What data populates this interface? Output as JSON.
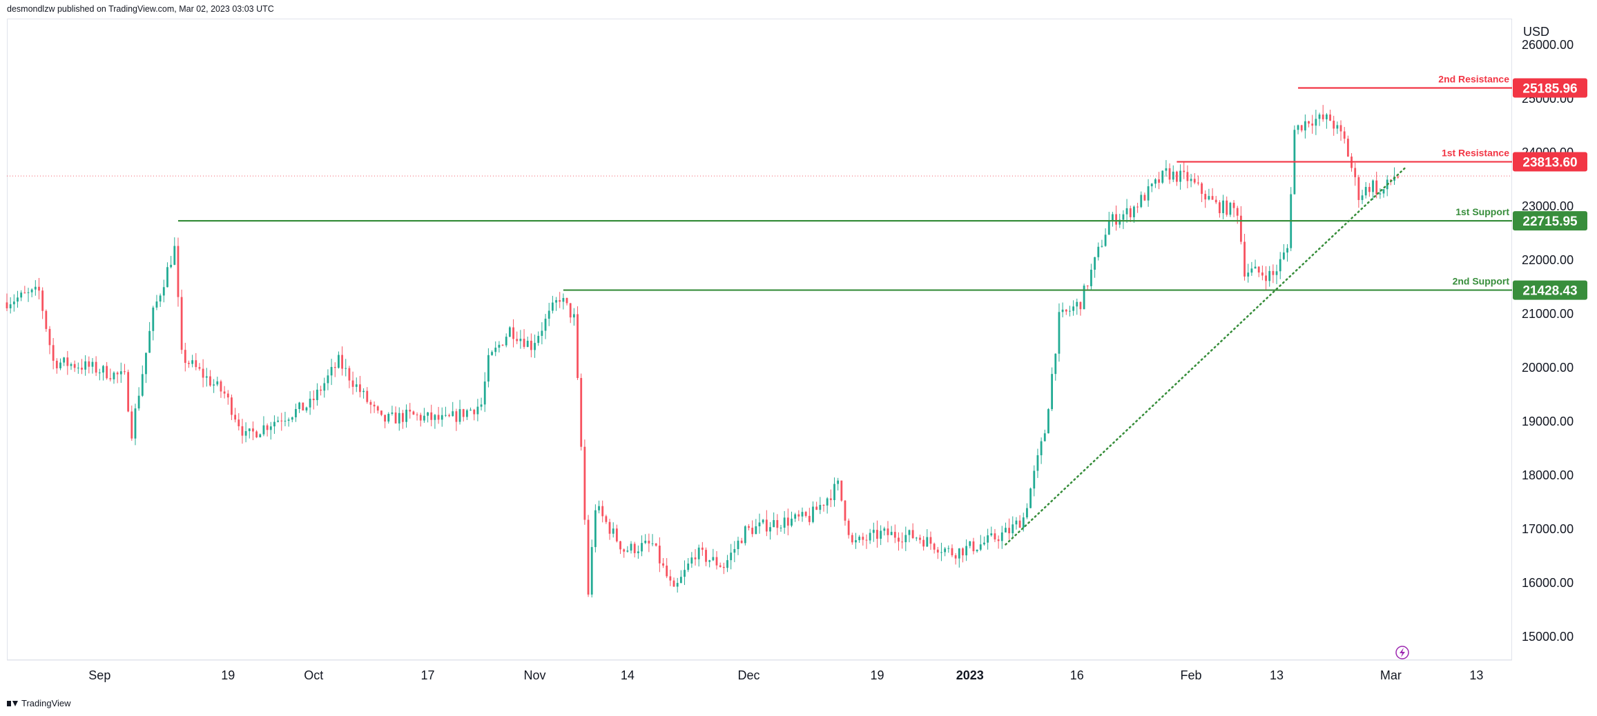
{
  "header": {
    "publisher": "desmondlzw published on TradingView.com, Mar 02, 2023 03:03 UTC"
  },
  "footer": {
    "brand": "TradingView"
  },
  "chart_data": {
    "type": "candlestick",
    "currency": "USD",
    "y_ticks": [
      15000,
      16000,
      17000,
      18000,
      19000,
      20000,
      21000,
      22000,
      23000,
      24000,
      25000,
      26000
    ],
    "y_tick_labels": [
      "15000.00",
      "16000.00",
      "17000.00",
      "18000.00",
      "19000.00",
      "20000.00",
      "21000.00",
      "22000.00",
      "23000.00",
      "24000.00",
      "25000.00",
      "26000.00"
    ],
    "x_ticks": [
      {
        "label": "Sep",
        "date": "2022-09-01"
      },
      {
        "label": "19",
        "date": "2022-09-19"
      },
      {
        "label": "Oct",
        "date": "2022-10-01"
      },
      {
        "label": "17",
        "date": "2022-10-17"
      },
      {
        "label": "Nov",
        "date": "2022-11-01"
      },
      {
        "label": "14",
        "date": "2022-11-14"
      },
      {
        "label": "Dec",
        "date": "2022-12-01"
      },
      {
        "label": "19",
        "date": "2022-12-19"
      },
      {
        "label": "2023",
        "date": "2023-01-01",
        "bold": true
      },
      {
        "label": "16",
        "date": "2023-01-16"
      },
      {
        "label": "Feb",
        "date": "2023-02-01"
      },
      {
        "label": "13",
        "date": "2023-02-13"
      },
      {
        "label": "Mar",
        "date": "2023-03-01"
      },
      {
        "label": "13",
        "date": "2023-03-13"
      }
    ],
    "price_path": [
      [
        "2022-08-19",
        21200
      ],
      [
        "2022-08-24",
        21400
      ],
      [
        "2022-08-26",
        20100
      ],
      [
        "2022-08-31",
        20000
      ],
      [
        "2022-09-05",
        19800
      ],
      [
        "2022-09-06",
        18800
      ],
      [
        "2022-09-09",
        21000
      ],
      [
        "2022-09-12",
        22200
      ],
      [
        "2022-09-13",
        20200
      ],
      [
        "2022-09-19",
        19500
      ],
      [
        "2022-09-22",
        18700
      ],
      [
        "2022-09-26",
        19000
      ],
      [
        "2022-10-01",
        19300
      ],
      [
        "2022-10-05",
        20100
      ],
      [
        "2022-10-11",
        19000
      ],
      [
        "2022-10-15",
        19100
      ],
      [
        "2022-10-20",
        19000
      ],
      [
        "2022-10-25",
        19300
      ],
      [
        "2022-10-26",
        20100
      ],
      [
        "2022-10-29",
        20700
      ],
      [
        "2022-11-01",
        20400
      ],
      [
        "2022-11-05",
        21300
      ],
      [
        "2022-11-07",
        20900
      ],
      [
        "2022-11-08",
        18500
      ],
      [
        "2022-11-09",
        15800
      ],
      [
        "2022-11-10",
        17400
      ],
      [
        "2022-11-14",
        16600
      ],
      [
        "2022-11-18",
        16700
      ],
      [
        "2022-11-21",
        15800
      ],
      [
        "2022-11-24",
        16550
      ],
      [
        "2022-11-28",
        16300
      ],
      [
        "2022-12-01",
        16950
      ],
      [
        "2022-12-05",
        17100
      ],
      [
        "2022-12-10",
        17200
      ],
      [
        "2022-12-14",
        17800
      ],
      [
        "2022-12-16",
        16700
      ],
      [
        "2022-12-20",
        16900
      ],
      [
        "2022-12-25",
        16850
      ],
      [
        "2022-12-30",
        16550
      ],
      [
        "2023-01-03",
        16700
      ],
      [
        "2023-01-07",
        16950
      ],
      [
        "2023-01-09",
        17200
      ],
      [
        "2023-01-12",
        18800
      ],
      [
        "2023-01-14",
        20900
      ],
      [
        "2023-01-17",
        21200
      ],
      [
        "2023-01-21",
        22700
      ],
      [
        "2023-01-24",
        22900
      ],
      [
        "2023-01-29",
        23600
      ],
      [
        "2023-02-01",
        23500
      ],
      [
        "2023-02-05",
        23000
      ],
      [
        "2023-02-08",
        22900
      ],
      [
        "2023-02-09",
        21800
      ],
      [
        "2023-02-13",
        21700
      ],
      [
        "2023-02-15",
        22200
      ],
      [
        "2023-02-16",
        24400
      ],
      [
        "2023-02-18",
        24600
      ],
      [
        "2023-02-21",
        24600
      ],
      [
        "2023-02-23",
        24200
      ],
      [
        "2023-02-25",
        23200
      ],
      [
        "2023-02-27",
        23400
      ],
      [
        "2023-02-28",
        23200
      ],
      [
        "2023-03-02",
        23550
      ]
    ],
    "levels": [
      {
        "name": "2nd Resistance",
        "value": 25185.96,
        "label": "25185.96",
        "color": "#f23645",
        "start": "2023-02-16"
      },
      {
        "name": "1st Resistance",
        "value": 23813.6,
        "label": "23813.60",
        "color": "#f23645",
        "start": "2023-01-30"
      },
      {
        "name": "1st Support",
        "value": 22715.95,
        "label": "22715.95",
        "color": "#388e3c",
        "start": "2022-09-12"
      },
      {
        "name": "2nd Support",
        "value": 21428.43,
        "label": "21428.43",
        "color": "#388e3c",
        "start": "2022-11-05"
      }
    ],
    "trendline": {
      "color": "#388e3c",
      "style": "dotted",
      "points": [
        [
          "2023-01-06",
          16700
        ],
        [
          "2023-03-03",
          23700
        ]
      ]
    },
    "last_price_line": {
      "value": 23550,
      "color": "#f23645",
      "style": "dotted"
    },
    "up_color": "#22ab94",
    "down_color": "#f7525f",
    "grid": false
  }
}
